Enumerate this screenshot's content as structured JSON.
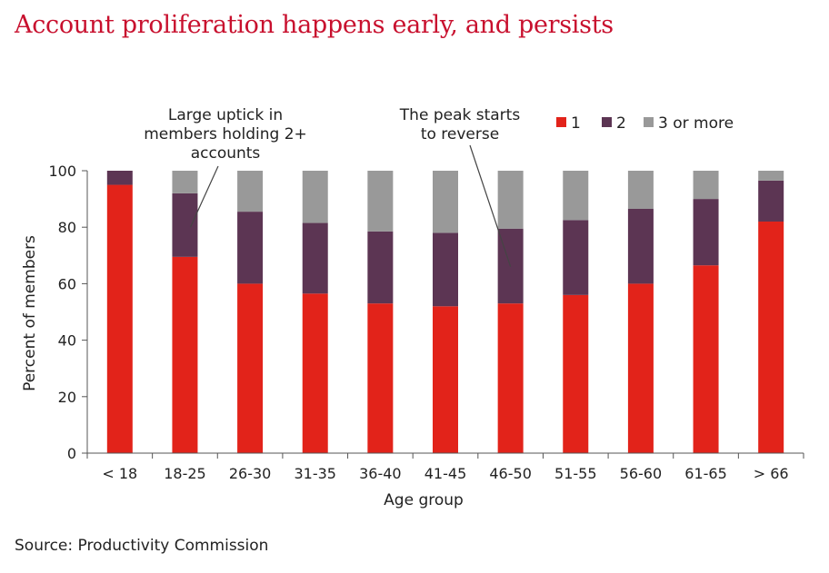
{
  "page": {
    "title": "Account proliferation happens early, and persists",
    "source": "Source: Productivity Commission"
  },
  "chart_data": {
    "type": "bar",
    "stacked": true,
    "categories": [
      "< 18",
      "18-25",
      "26-30",
      "31-35",
      "36-40",
      "41-45",
      "46-50",
      "51-55",
      "56-60",
      "61-65",
      "> 66"
    ],
    "series": [
      {
        "name": "1",
        "color": "#e2231a",
        "values": [
          95,
          69.5,
          60,
          56.5,
          53,
          52,
          53,
          56,
          60,
          66.5,
          82
        ]
      },
      {
        "name": "2",
        "color": "#5c3553",
        "values": [
          5,
          22.5,
          25.5,
          25,
          25.5,
          26,
          26.5,
          26.5,
          26.5,
          23.5,
          14.5
        ]
      },
      {
        "name": "3 or more",
        "color": "#999999",
        "values": [
          0,
          8,
          14.5,
          18.5,
          21.5,
          22,
          20.5,
          17.5,
          13.5,
          10,
          3.5
        ]
      }
    ],
    "title": "Account proliferation happens early, and persists",
    "xlabel": "Age group",
    "ylabel": "Percent of members",
    "ylim": [
      0,
      100
    ],
    "yticks": [
      0,
      20,
      40,
      60,
      80,
      100
    ],
    "grid": false,
    "legend": "top-right",
    "annotations": [
      {
        "lines": [
          "Large uptick in",
          "members holding 2+",
          "accounts"
        ],
        "category": "18-25",
        "value": 80
      },
      {
        "lines": [
          "The peak starts",
          "to reverse"
        ],
        "category": "46-50",
        "value": 66
      }
    ]
  }
}
